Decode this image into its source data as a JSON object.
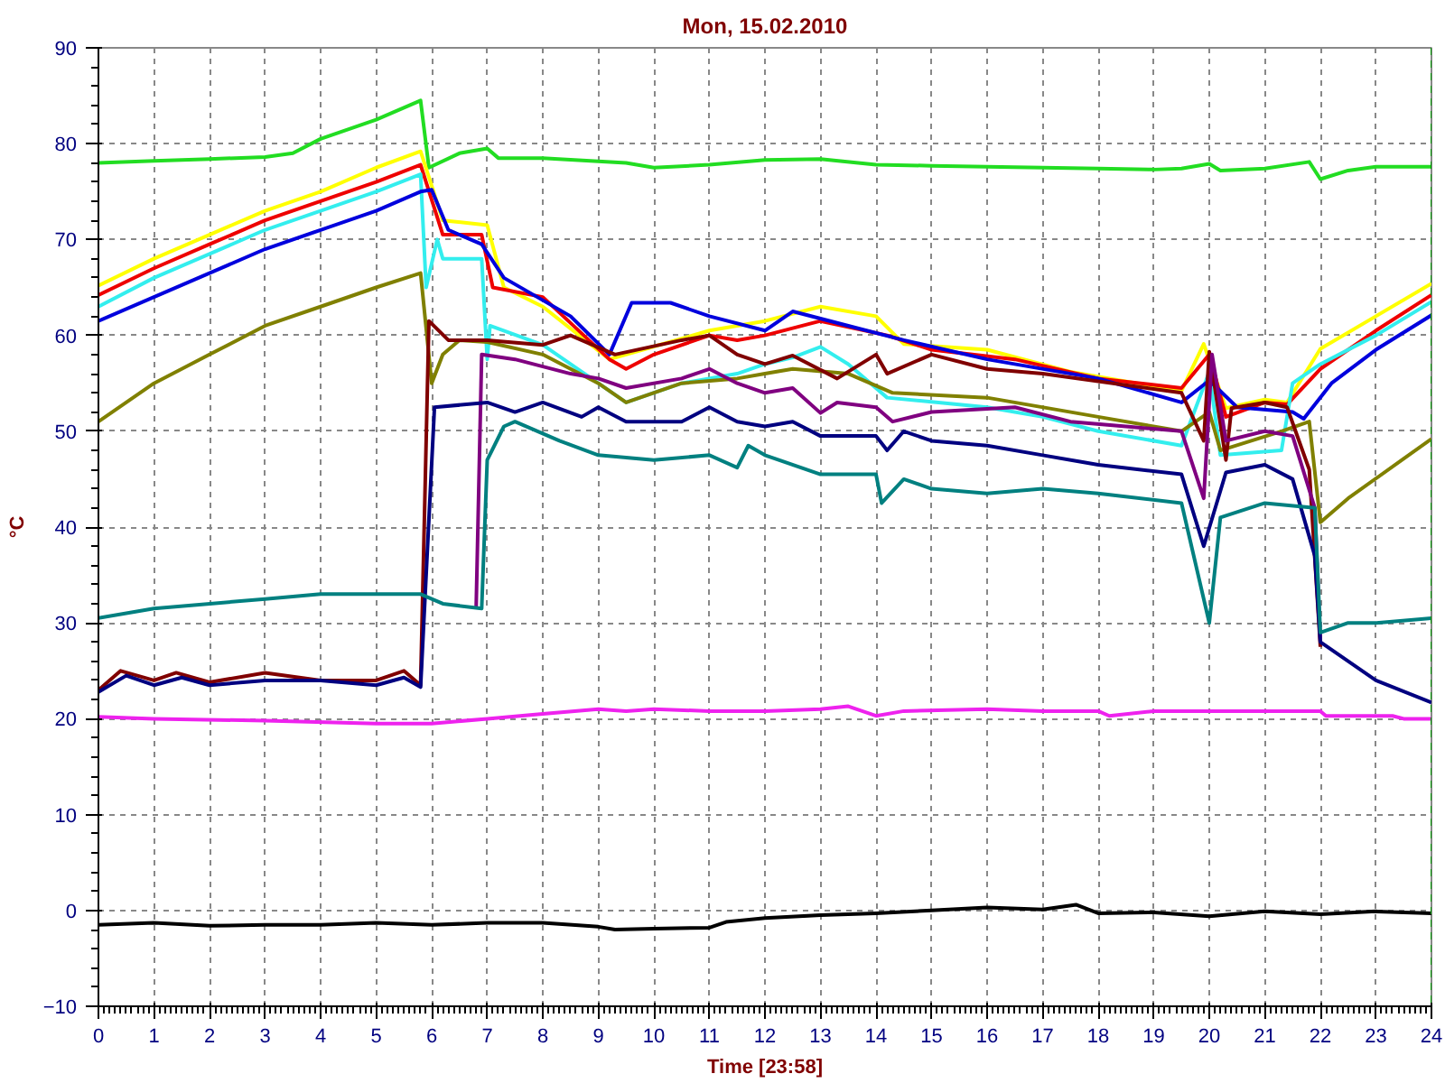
{
  "chart_data": {
    "type": "line",
    "title": "Mon, 15.02.2010",
    "xlabel": "Time [23:58]",
    "ylabel": "°C",
    "xlim": [
      0,
      24
    ],
    "ylim": [
      -10,
      90
    ],
    "xticks": [
      0,
      1,
      2,
      3,
      4,
      5,
      6,
      7,
      8,
      9,
      10,
      11,
      12,
      13,
      14,
      15,
      16,
      17,
      18,
      19,
      20,
      21,
      22,
      23,
      24
    ],
    "yticks": [
      -10,
      0,
      10,
      20,
      30,
      40,
      50,
      60,
      70,
      80,
      90
    ],
    "grid": true,
    "marker": "none",
    "line_style": "solid",
    "ref_lines": [
      {
        "axis": "x",
        "value": 24,
        "color": "#009900",
        "line_style": "dashed"
      }
    ],
    "series": [
      {
        "color": "#22dd22",
        "x": [
          0,
          1,
          2,
          3,
          3.5,
          4,
          5,
          5.8,
          5.95,
          6.5,
          7,
          7.2,
          8,
          9.5,
          10,
          11,
          12,
          13,
          14,
          15,
          16,
          17,
          18,
          19,
          19.5,
          20,
          20.2,
          21,
          21.8,
          22,
          22.5,
          23,
          24
        ],
        "values": [
          78,
          78.2,
          78.4,
          78.6,
          79,
          80.5,
          82.5,
          84.5,
          77.5,
          79,
          79.5,
          78.5,
          78.5,
          78,
          77.5,
          77.8,
          78.3,
          78.4,
          77.8,
          77.7,
          77.6,
          77.5,
          77.4,
          77.3,
          77.4,
          77.9,
          77.2,
          77.4,
          78.1,
          76.3,
          77.2,
          77.6,
          77.6
        ]
      },
      {
        "color": "#ffff00",
        "x": [
          0,
          1,
          2,
          3,
          4,
          5,
          5.8,
          6.2,
          7,
          7.3,
          8,
          9.2,
          9.8,
          11,
          12,
          13,
          14,
          14.5,
          16,
          17.5,
          19.5,
          19.9,
          20.3,
          21,
          21.4,
          22,
          23,
          24
        ],
        "values": [
          65.2,
          68,
          70.5,
          73,
          75,
          77.5,
          79.2,
          72,
          71.5,
          65,
          63,
          57.5,
          58.5,
          60.5,
          61.5,
          63,
          62,
          59.1,
          58.5,
          56.2,
          54.2,
          59.1,
          52.4,
          53.3,
          53,
          58.6,
          62,
          65.4
        ]
      },
      {
        "color": "#ee0000",
        "x": [
          0,
          1,
          2,
          3,
          4,
          5,
          5.8,
          6.2,
          6.9,
          7.1,
          8,
          9.2,
          9.5,
          10,
          11,
          11.5,
          12,
          13,
          14.2,
          15,
          16.5,
          18,
          19.5,
          20,
          20.3,
          21,
          21.4,
          22,
          23,
          24
        ],
        "values": [
          64.2,
          67,
          69.5,
          72,
          74,
          76,
          77.8,
          70.5,
          70.5,
          65,
          64,
          57.5,
          56.5,
          58,
          60,
          59.5,
          60,
          61.5,
          60,
          58.5,
          57.5,
          55.5,
          54.5,
          58,
          51.5,
          53,
          52.8,
          56.5,
          60.5,
          64.2
        ]
      },
      {
        "color": "#33eeee",
        "x": [
          0,
          1,
          2,
          3,
          4,
          5,
          5.8,
          5.9,
          6.1,
          6.2,
          6.9,
          7,
          7.05,
          8,
          9,
          9.5,
          10.5,
          11.5,
          12,
          12.5,
          13,
          13.5,
          14.2,
          16,
          17,
          18,
          19.5,
          20,
          20.2,
          21.3,
          21.5,
          22,
          23,
          24
        ],
        "values": [
          63,
          66,
          68.5,
          71,
          73,
          75,
          76.8,
          65,
          70,
          68,
          68,
          57.5,
          61,
          59,
          55,
          53,
          55,
          56,
          57,
          57.7,
          58.8,
          57,
          53.5,
          52.5,
          51.5,
          50,
          48.5,
          56.2,
          47.5,
          48,
          55,
          57,
          60,
          63.5
        ]
      },
      {
        "color": "#0000dd",
        "x": [
          0,
          1,
          2,
          3,
          4,
          5,
          5.8,
          6,
          6.3,
          6.9,
          7.3,
          8.5,
          9.2,
          9.6,
          10.3,
          11,
          12,
          12.5,
          13.5,
          14.5,
          16,
          18,
          19.5,
          20,
          20.5,
          21.5,
          21.7,
          22.2,
          23,
          24
        ],
        "values": [
          61.5,
          64,
          66.5,
          69,
          71,
          73,
          75,
          75.2,
          71,
          69.5,
          66,
          62,
          58,
          63.4,
          63.4,
          62,
          60.5,
          62.5,
          61,
          59.5,
          57.5,
          55.5,
          53,
          55.3,
          52.5,
          52,
          51.3,
          55,
          58.5,
          62.1
        ]
      },
      {
        "color": "#808000",
        "x": [
          0,
          1,
          2,
          3,
          4,
          5,
          5.8,
          6,
          6.2,
          6.5,
          7,
          8,
          9,
          9.5,
          10.5,
          11.5,
          12,
          12.5,
          13.5,
          14.3,
          16,
          18,
          19.5,
          20,
          20.2,
          21.3,
          21.8,
          22,
          22.5,
          24
        ],
        "values": [
          51,
          55,
          58,
          61,
          63,
          65,
          66.5,
          55,
          58,
          59.5,
          59.3,
          58,
          55,
          53,
          55,
          55.5,
          56,
          56.5,
          56,
          54,
          53.5,
          51.5,
          50,
          52,
          48,
          50,
          51,
          40.5,
          43,
          49.2
        ]
      },
      {
        "color": "#800000",
        "x": [
          0,
          0.4,
          1,
          1.4,
          2,
          3,
          4,
          5,
          5.5,
          5.8,
          5.95,
          6.3,
          7,
          8,
          8.5,
          9.3,
          10.5,
          11,
          11.5,
          12,
          12.5,
          13.3,
          14,
          14.2,
          15,
          16,
          17,
          19.5,
          19.9,
          20,
          20.3,
          20.4,
          21,
          21.4,
          21.8,
          22
        ],
        "values": [
          23,
          25,
          24,
          24.8,
          23.8,
          24.8,
          24,
          24,
          25,
          23.5,
          61.5,
          59.5,
          59.5,
          59,
          60,
          58,
          59.5,
          60,
          58,
          57,
          57.9,
          55.5,
          58,
          56,
          58,
          56.5,
          56,
          54,
          49,
          58.3,
          47,
          52.4,
          53,
          52.5,
          46,
          27.5
        ]
      },
      {
        "color": "#800080",
        "x": [
          6.8,
          6.9,
          7.5,
          8.5,
          9,
          9.5,
          10.5,
          11,
          11.5,
          12,
          12.5,
          13,
          13.3,
          14,
          14.3,
          15,
          16.5,
          17.5,
          18.5,
          19.5,
          19.9,
          20.05,
          20.3,
          21,
          21.5,
          21.9,
          22
        ],
        "values": [
          31.5,
          58,
          57.5,
          56,
          55.5,
          54.5,
          55.5,
          56.5,
          55,
          54,
          54.5,
          51.9,
          53,
          52.5,
          51,
          52,
          52.5,
          51,
          50.5,
          50,
          43,
          58,
          49,
          50,
          49.5,
          42,
          28
        ]
      },
      {
        "color": "#000080",
        "x": [
          0,
          0.5,
          1,
          1.5,
          2,
          3,
          4,
          5,
          5.5,
          5.8,
          6.05,
          7,
          7.5,
          8,
          8.7,
          9,
          9.5,
          10.5,
          11,
          11.5,
          12,
          12.5,
          13,
          14,
          14.2,
          14.5,
          15,
          16,
          17,
          18,
          19.5,
          19.9,
          20.3,
          21,
          21.5,
          21.9,
          22,
          23,
          24
        ],
        "values": [
          22.8,
          24.5,
          23.5,
          24.3,
          23.5,
          24,
          24,
          23.5,
          24.3,
          23.3,
          52.5,
          53,
          52,
          53,
          51.5,
          52.5,
          51,
          51,
          52.5,
          51,
          50.5,
          51,
          49.5,
          49.5,
          48,
          50,
          49,
          48.5,
          47.5,
          46.5,
          45.5,
          38,
          45.7,
          46.5,
          45,
          37,
          28,
          24,
          21.7
        ]
      },
      {
        "color": "#008080",
        "x": [
          0,
          1,
          3,
          4,
          5.8,
          6.2,
          6.9,
          7,
          7.3,
          7.5,
          8.3,
          9,
          10,
          11,
          11.5,
          11.7,
          12,
          13,
          14,
          14.1,
          14.5,
          15,
          16,
          17,
          18,
          19.5,
          20,
          20.2,
          21,
          21.9,
          22,
          22.5,
          23,
          24
        ],
        "values": [
          30.5,
          31.5,
          32.5,
          33,
          33,
          32,
          31.5,
          47,
          50.5,
          51,
          49,
          47.5,
          47,
          47.5,
          46.2,
          48.5,
          47.5,
          45.5,
          45.5,
          42.5,
          45,
          44,
          43.5,
          44,
          43.5,
          42.5,
          30,
          41,
          42.5,
          42,
          29,
          30,
          30,
          30.5
        ]
      },
      {
        "color": "#ee22ee",
        "x": [
          0,
          1,
          3,
          5,
          6,
          7,
          8,
          9,
          9.5,
          10,
          11,
          12,
          13,
          13.5,
          14,
          14.5,
          16,
          17,
          18,
          18.2,
          19,
          22,
          22.1,
          23.3,
          23.5,
          24
        ],
        "values": [
          20.2,
          20,
          19.8,
          19.5,
          19.5,
          20,
          20.5,
          21,
          20.8,
          21,
          20.8,
          20.8,
          21,
          21.3,
          20.3,
          20.8,
          21,
          20.8,
          20.8,
          20.3,
          20.8,
          20.8,
          20.3,
          20.3,
          20,
          20
        ]
      },
      {
        "color": "#000000",
        "x": [
          0,
          1,
          2,
          3,
          4,
          5,
          6,
          7,
          8,
          9,
          9.3,
          10,
          11,
          11.3,
          12,
          13,
          14,
          15,
          16,
          17,
          17.6,
          18,
          19,
          20,
          21,
          22,
          23,
          24
        ],
        "values": [
          -1.5,
          -1.3,
          -1.6,
          -1.5,
          -1.5,
          -1.3,
          -1.5,
          -1.3,
          -1.3,
          -1.7,
          -2,
          -1.9,
          -1.8,
          -1.2,
          -0.8,
          -0.5,
          -0.3,
          0,
          0.3,
          0.1,
          0.6,
          -0.3,
          -0.2,
          -0.6,
          -0.1,
          -0.4,
          -0.1,
          -0.3
        ]
      }
    ]
  }
}
